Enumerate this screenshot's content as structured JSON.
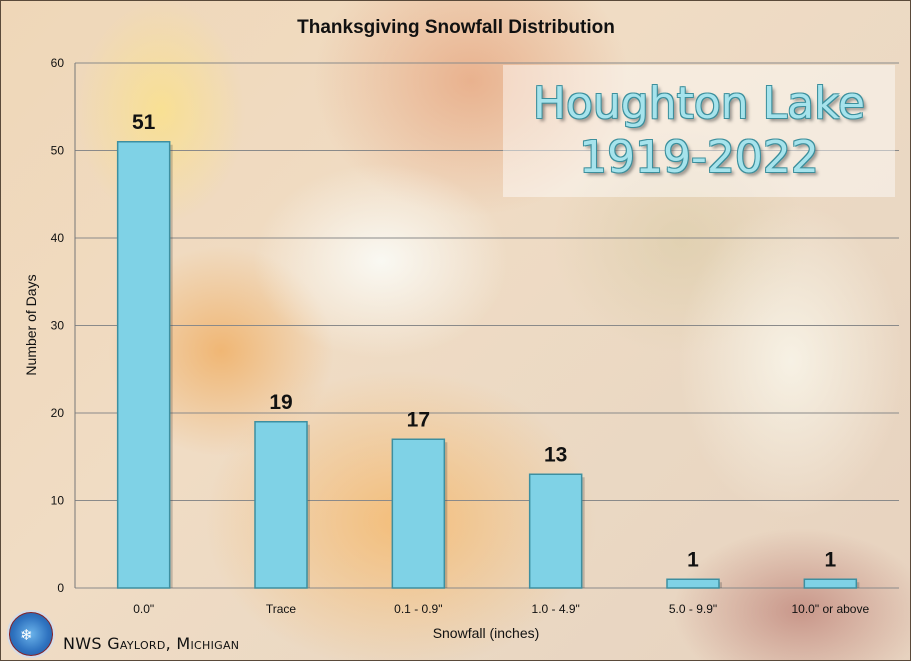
{
  "chart_data": {
    "type": "bar",
    "title": "Thanksgiving Snowfall Distribution",
    "xlabel": "Snowfall (inches)",
    "ylabel": "Number of Days",
    "categories": [
      "0.0\"",
      "Trace",
      "0.1 - 0.9\"",
      "1.0 - 4.9\"",
      "5.0 - 9.9\"",
      "10.0\" or above"
    ],
    "values": [
      51,
      19,
      17,
      13,
      1,
      1
    ],
    "ylim": [
      0,
      60
    ],
    "yticks": [
      0,
      10,
      20,
      30,
      40,
      50,
      60
    ],
    "grid": true,
    "bar_color": "#7fd2e6",
    "bar_edge_color": "#3d8fa0"
  },
  "overlay": {
    "line1": "Houghton Lake",
    "line2": "1919-2022"
  },
  "footer": {
    "credit": "NWS Gaylord, Michigan",
    "logo_icon": "nws-logo-icon"
  }
}
